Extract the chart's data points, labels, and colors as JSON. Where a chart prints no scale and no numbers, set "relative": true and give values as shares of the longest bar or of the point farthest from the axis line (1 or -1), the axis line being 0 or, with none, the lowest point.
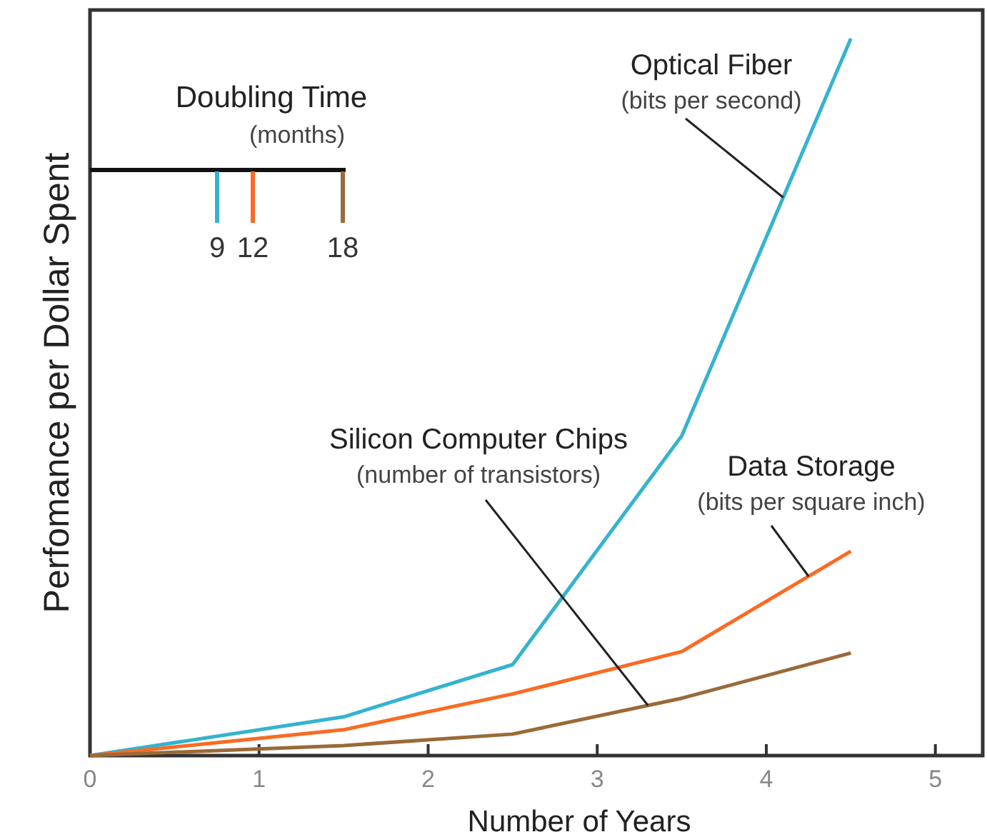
{
  "chart_data": {
    "type": "line",
    "relative": true,
    "xlabel": "Number of Years",
    "ylabel": "Perfomance per Dollar Spent",
    "x": [
      0,
      1.5,
      2.5,
      3.5,
      4.5
    ],
    "xlim": [
      0,
      5.28
    ],
    "xticks": [
      0,
      1,
      2,
      3,
      4,
      5
    ],
    "tick_labels": "x",
    "grid": false,
    "marker": "none",
    "line_style": "solid",
    "legend_title": "Doubling Time (months)",
    "series": [
      {
        "name": "Optical Fiber (bits per second)",
        "color": "#35b3cf",
        "values": [
          0,
          0.054,
          0.127,
          0.446,
          1
        ]
      },
      {
        "name": "Data Storage (bits per square inch)",
        "color": "#fb6a22",
        "values": [
          0,
          0.036,
          0.086,
          0.145,
          0.285
        ]
      },
      {
        "name": "Silicon Computer Chips (number of transistors)",
        "color": "#9a6a38",
        "values": [
          0,
          0.014,
          0.03,
          0.08,
          0.143
        ]
      }
    ],
    "annotations": [
      "9",
      "12",
      "18"
    ]
  }
}
